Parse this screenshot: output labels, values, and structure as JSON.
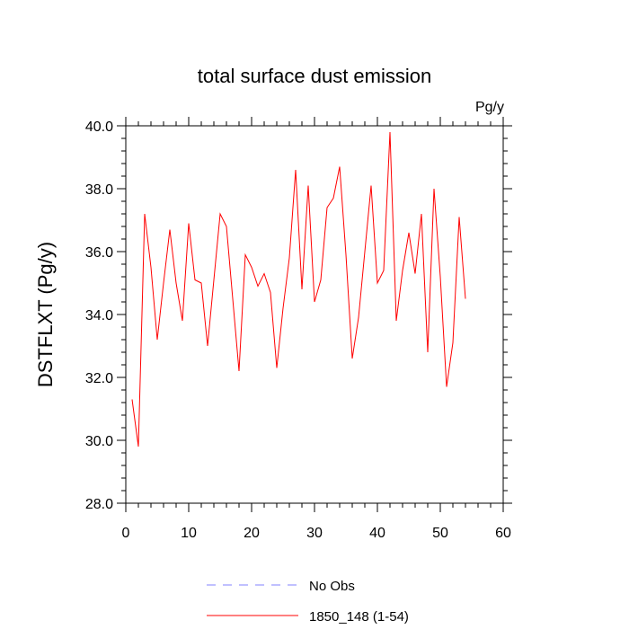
{
  "chart_data": {
    "type": "line",
    "title": "total surface dust emission",
    "units_label": "Pg/y",
    "xlabel": "",
    "ylabel": "DSTFLXT  (Pg/y)",
    "xlim": [
      0,
      60
    ],
    "ylim": [
      28.0,
      40.0
    ],
    "x_ticks": [
      0,
      10,
      20,
      30,
      40,
      50,
      60
    ],
    "y_ticks": [
      28.0,
      30.0,
      32.0,
      34.0,
      36.0,
      38.0,
      40.0
    ],
    "x_tick_labels": [
      "0",
      "10",
      "20",
      "30",
      "40",
      "50",
      "60"
    ],
    "y_tick_labels": [
      "28.0",
      "30.0",
      "32.0",
      "34.0",
      "36.0",
      "38.0",
      "40.0"
    ],
    "grid": false,
    "legend_position": "bottom",
    "series": [
      {
        "name": "No Obs",
        "color": "#8080ff",
        "dashed": true,
        "x": [],
        "values": []
      },
      {
        "name": "1850_148 (1-54)",
        "color": "#ff0000",
        "dashed": false,
        "x": [
          1,
          2,
          3,
          4,
          5,
          6,
          7,
          8,
          9,
          10,
          11,
          12,
          13,
          14,
          15,
          16,
          17,
          18,
          19,
          20,
          21,
          22,
          23,
          24,
          25,
          26,
          27,
          28,
          29,
          30,
          31,
          32,
          33,
          34,
          35,
          36,
          37,
          38,
          39,
          40,
          41,
          42,
          43,
          44,
          45,
          46,
          47,
          48,
          49,
          50,
          51,
          52,
          53,
          54
        ],
        "values": [
          31.3,
          29.8,
          37.2,
          35.5,
          33.2,
          35.0,
          36.7,
          35.0,
          33.8,
          36.9,
          35.1,
          35.0,
          33.0,
          35.1,
          37.2,
          36.8,
          34.5,
          32.2,
          35.9,
          35.5,
          34.9,
          35.3,
          34.7,
          32.3,
          34.2,
          35.8,
          38.6,
          34.8,
          38.1,
          34.4,
          35.1,
          37.4,
          37.7,
          38.7,
          35.9,
          32.6,
          33.9,
          36.0,
          38.1,
          35.0,
          35.4,
          39.8,
          33.8,
          35.4,
          36.6,
          35.3,
          37.2,
          32.8,
          38.0,
          35.2,
          31.7,
          33.1,
          37.1,
          34.5
        ]
      }
    ]
  }
}
